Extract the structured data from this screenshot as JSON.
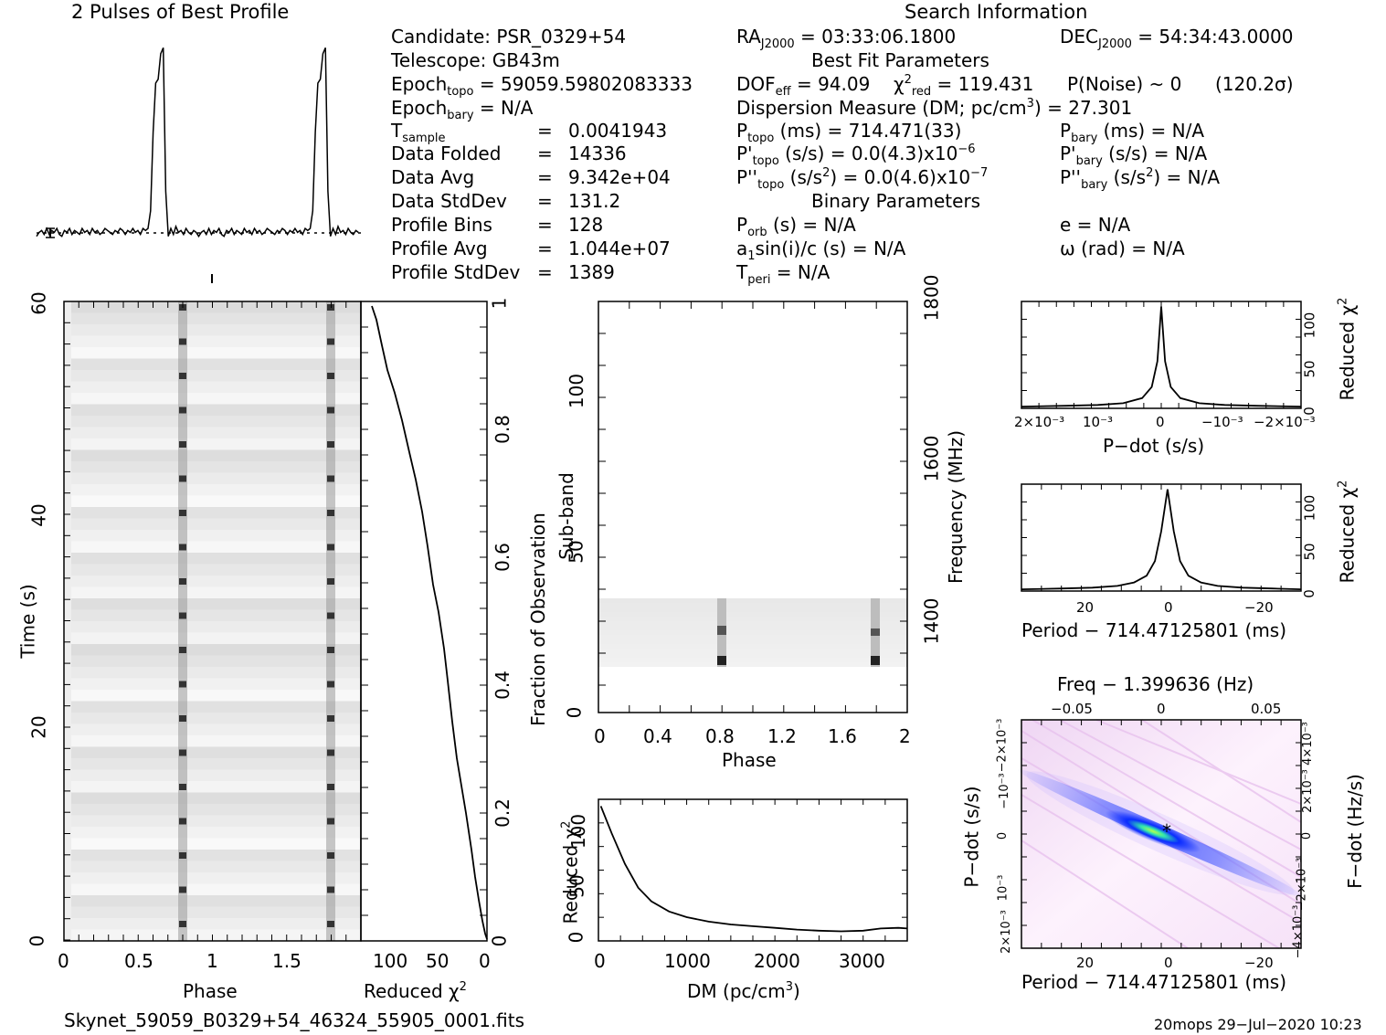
{
  "profile": {
    "title": "2 Pulses of Best Profile",
    "phase": [
      0,
      0.0156,
      0.0313,
      0.0469,
      0.0625,
      0.0781,
      0.0938,
      0.1094,
      0.125,
      0.1406,
      0.1563,
      0.1719,
      0.1875,
      0.2031,
      0.2188,
      0.2344,
      0.25,
      0.2656,
      0.2813,
      0.2969,
      0.3125,
      0.3281,
      0.3438,
      0.3594,
      0.375,
      0.3906,
      0.4063,
      0.4219,
      0.4375,
      0.4531,
      0.4688,
      0.4844,
      0.5,
      0.5156,
      0.5313,
      0.5469,
      0.5625,
      0.5781,
      0.5938,
      0.6094,
      0.625,
      0.6406,
      0.6563,
      0.6719,
      0.6875,
      0.7031,
      0.7188,
      0.7344,
      0.75,
      0.7656,
      0.7813,
      0.7969,
      0.8125,
      0.8281,
      0.8438,
      0.8594,
      0.875,
      0.8906,
      0.9063,
      0.9219,
      0.9375,
      0.9531,
      0.9688,
      0.9844
    ],
    "value": [
      0.02,
      0.04,
      0.05,
      0.03,
      0.06,
      0.03,
      0.05,
      0.04,
      0.06,
      0.03,
      0.02,
      0.05,
      0.04,
      0.06,
      0.03,
      0.05,
      0.04,
      0.03,
      0.06,
      0.04,
      0.05,
      0.03,
      0.06,
      0.04,
      0.05,
      0.03,
      0.04,
      0.06,
      0.05,
      0.04,
      0.03,
      0.05,
      0.04,
      0.06,
      0.05,
      0.03,
      0.05,
      0.04,
      0.06,
      0.04,
      0.05,
      0.03,
      0.06,
      0.05,
      0.06,
      0.15,
      0.55,
      0.8,
      0.82,
      0.95,
      0.98,
      0.25,
      0.02,
      0.06,
      0.03,
      0.07,
      0.04,
      0.05,
      0.03,
      0.06,
      0.04,
      0.03,
      0.05,
      0.04
    ]
  },
  "header": {
    "title": "Search Information",
    "candidate": "Candidate:  PSR_0329+54",
    "telescope": "Telescope:  GB43m",
    "epoch_topo_label": "Epoch",
    "epoch_topo_sub": "topo",
    "epoch_topo_value": " = 59059.59802083333",
    "epoch_bary_label": "Epoch",
    "epoch_bary_sub": "bary",
    "epoch_bary_value": " = N/A",
    "tsample_label": "T",
    "tsample_sub": "sample",
    "tsample_eq": "=",
    "tsample_value": "0.0041943",
    "params": [
      {
        "label": "Data Folded",
        "value": "14336"
      },
      {
        "label": "Data Avg",
        "value": "9.342e+04"
      },
      {
        "label": "Data StdDev",
        "value": "131.2"
      },
      {
        "label": "Profile Bins",
        "value": "128"
      },
      {
        "label": "Profile Avg",
        "value": "1.044e+07"
      },
      {
        "label": "Profile StdDev",
        "value": "1389"
      }
    ],
    "eq": "=",
    "ra_label": "RA",
    "ra_sub": "J2000",
    "ra_value": " = 03:33:06.1800",
    "dec_label": "DEC",
    "dec_sub": "J2000",
    "dec_value": " = 54:34:43.0000",
    "best_fit_title": "Best Fit Parameters",
    "dof_label": "DOF",
    "dof_sub": "eff",
    "dof_value": " = 94.09",
    "chi_label": "χ",
    "chi_sup": "2",
    "chi_sub": "red",
    "chi_value": " = 119.431",
    "pnoise": "P(Noise) ~ 0",
    "sigma": "(120.2σ)",
    "dm_text": "Dispersion Measure (DM; pc/cm",
    "dm_sup": "3",
    "dm_value": ") = 27.301",
    "ptopo_label": "P",
    "ptopo_sub": "topo",
    "ptopo_value": " (ms) =  714.471(33)",
    "pbary_label": "P",
    "pbary_sub": "bary",
    "pbary_value": " (ms) = N/A",
    "pdtopo_label": "P'",
    "pdtopo_sub": "topo",
    "pdtopo_value": " (s/s) = 0.0(4.3)x10",
    "pdtopo_sup": "−6",
    "pdbary_label": "P'",
    "pdbary_sub": "bary",
    "pdbary_value": " (s/s) = N/A",
    "pddtopo_label": "P''",
    "pddtopo_sub": "topo",
    "pddtopo_mid": " (s/s",
    "pddtopo_sup": "2",
    "pddtopo_value": ") = 0.0(4.6)x10",
    "pddtopo_sup2": "−7",
    "pddbary_label": "P''",
    "pddbary_sub": "bary",
    "pddbary_mid": " (s/s",
    "pddbary_sup": "2",
    "pddbary_value": ") = N/A",
    "binary_title": "Binary Parameters",
    "porb_label": "P",
    "porb_sub": "orb",
    "porb_value": " (s) = N/A",
    "e_text": "e = N/A",
    "a1_text1": "a",
    "a1_sub": "1",
    "a1_text2": "sin(i)/c (s) = N/A",
    "omega_text": "ω (rad) = N/A",
    "tperi_label": "T",
    "tperi_sub": "peri",
    "tperi_value": " = N/A"
  },
  "time_phase": {
    "xticks": [
      "0",
      "0.5",
      "1",
      "1.5"
    ],
    "yticks": [
      "0",
      "20",
      "40",
      "60"
    ],
    "xlabel": "Phase",
    "ylabel": "Time (s)"
  },
  "chi_time": {
    "xticks": [
      "100",
      "50",
      "0"
    ],
    "xlabel": "Reduced χ",
    "xlabel_sup": "2",
    "yticks": [
      "0",
      "0.2",
      "0.4",
      "0.6",
      "0.8",
      "1"
    ],
    "ylabel": "Fraction of Observation"
  },
  "subband": {
    "xticks": [
      "0",
      "0.4",
      "0.8",
      "1.2",
      "1.6",
      "2"
    ],
    "yticks": [
      "0",
      "50",
      "100"
    ],
    "xlabel": "Phase",
    "ylabel": "Sub-band",
    "freq_ticks": [
      "1400",
      "1600",
      "1800"
    ],
    "freq_label": "Frequency (MHz)"
  },
  "chart_data": [
    {
      "type": "line",
      "name": "dm-curve",
      "xlabel": "DM (pc/cm",
      "xlabel_sup": "3",
      "xlabel_end": ")",
      "ylabel": "Reduced χ",
      "ylabel_sup": "2",
      "xticks": [
        "0",
        "1000",
        "2000",
        "3000"
      ],
      "yticks": [
        "0",
        "50",
        "100"
      ],
      "xlim": [
        0,
        3500
      ],
      "ylim": [
        0,
        125
      ],
      "x": [
        27,
        150,
        300,
        450,
        600,
        800,
        1000,
        1250,
        1500,
        1750,
        2000,
        2250,
        2500,
        2750,
        3000,
        3200,
        3400,
        3500
      ],
      "y": [
        119,
        95,
        68,
        47,
        35,
        26,
        21,
        17,
        14.5,
        13,
        11.5,
        10,
        9,
        8.5,
        9,
        11,
        11.5,
        11
      ]
    },
    {
      "type": "line",
      "name": "pdot-curve",
      "xlabel": "P−dot (s/s)",
      "ylabel": "Reduced χ",
      "ylabel_sup": "2",
      "xticks": [
        "2×10⁻³",
        "10⁻³",
        "0",
        "−10⁻³",
        "−2×10⁻³"
      ],
      "yticks": [
        "0",
        "50",
        "100"
      ],
      "xlim": [
        0.0022,
        -0.0022
      ],
      "ylim": [
        0,
        125
      ],
      "x": [
        0.0022,
        0.0015,
        0.001,
        0.0006,
        0.0003,
        0.00015,
        6e-05,
        0,
        -6e-05,
        -0.00015,
        -0.0003,
        -0.0006,
        -0.001,
        -0.0015,
        -0.0022
      ],
      "y": [
        2,
        3,
        4,
        6,
        12,
        25,
        55,
        119,
        55,
        25,
        12,
        6,
        4,
        3,
        2
      ]
    },
    {
      "type": "line",
      "name": "period-curve",
      "xlabel": "Period − 714.47125801 (ms)",
      "ylabel": "Reduced χ",
      "ylabel_sup": "2",
      "xticks": [
        "20",
        "0",
        "−20"
      ],
      "yticks": [
        "0",
        "50",
        "100"
      ],
      "xlim": [
        35,
        -32
      ],
      "ylim": [
        0,
        125
      ],
      "x": [
        35,
        25,
        18,
        12,
        8,
        5,
        3,
        1.5,
        0,
        -1.5,
        -3,
        -5,
        -8,
        -12,
        -18,
        -25,
        -32
      ],
      "y": [
        2,
        3,
        4,
        6,
        10,
        18,
        35,
        70,
        119,
        70,
        35,
        18,
        10,
        6,
        4,
        3,
        2
      ]
    },
    {
      "type": "heatmap",
      "name": "pp-dot-plane",
      "title": "Freq − 1.399636 (Hz)",
      "xlabel": "Period − 714.47125801 (ms)",
      "ylabel": "P−dot (s/s)",
      "y2label": "F−dot (Hz/s)",
      "xticks": [
        "20",
        "0",
        "−20"
      ],
      "top_ticks": [
        "−0.05",
        "0",
        "0.05"
      ],
      "yticks": [
        "2×10⁻³",
        "10⁻³",
        "0",
        "−10⁻³",
        "−2×10⁻³"
      ],
      "y2ticks": [
        "−4×10⁻³",
        "−2×10⁻³",
        "0",
        "2×10⁻³",
        "4×10⁻³"
      ]
    }
  ],
  "footer": {
    "filename": "Skynet_59059_B0329+54_46324_55905_0001.fits",
    "stamp": "20mops  29−Jul−2020 10:23"
  },
  "colors": {
    "ink": "#000000",
    "grey": "#888888",
    "pp_low": "#fbeefb",
    "pp_mid": "#0a2cff",
    "pp_high": "#33e3a0"
  }
}
